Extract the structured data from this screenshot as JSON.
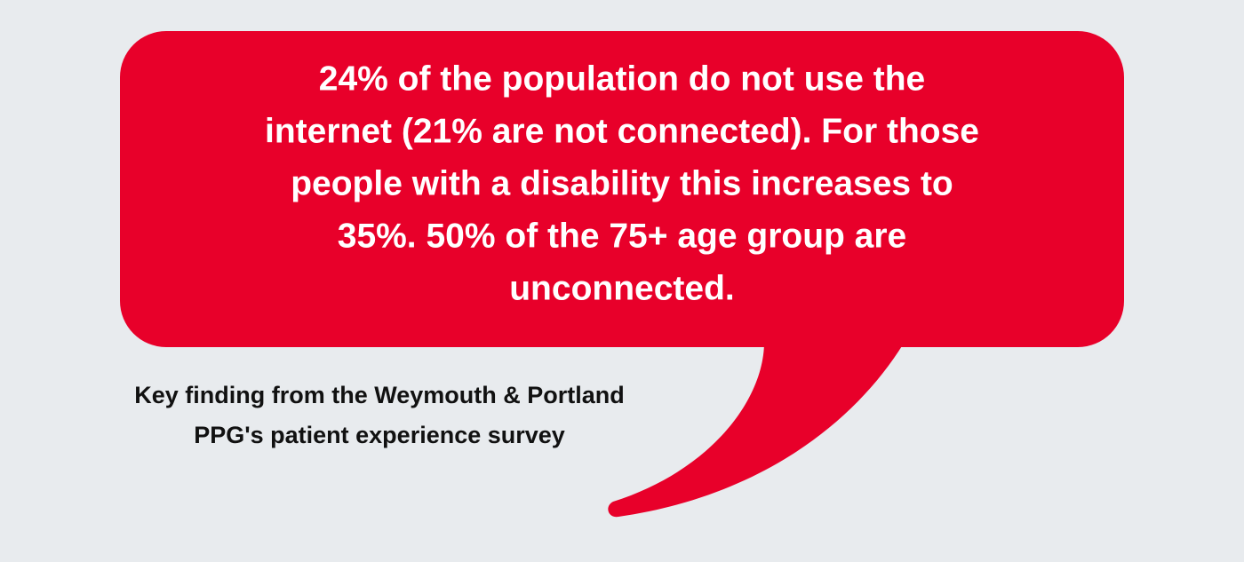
{
  "bubble": {
    "lines": [
      "24% of the population do not use the",
      "internet (21% are not connected). For those",
      "people with a disability this increases to",
      "35%. 50% of the 75+ age group are",
      "unconnected."
    ]
  },
  "caption": {
    "lines": [
      "Key finding from the Weymouth & Portland",
      "PPG's patient experience survey"
    ]
  }
}
